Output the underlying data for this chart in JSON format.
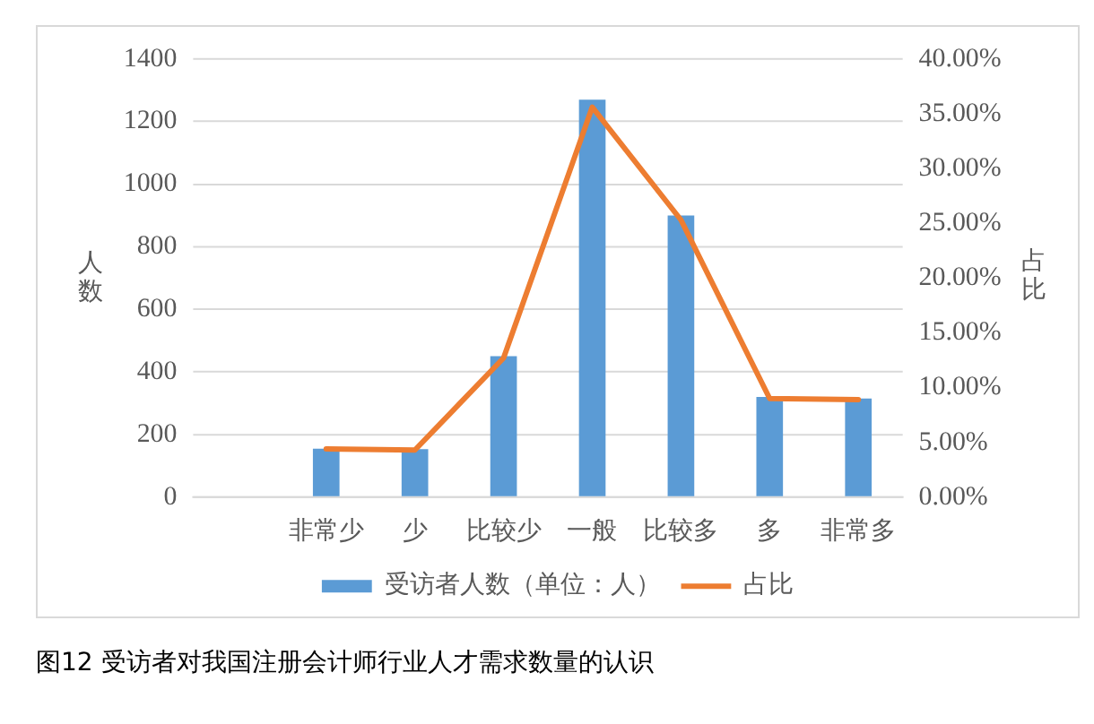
{
  "chart_data": {
    "type": "bar",
    "categories": [
      null,
      "非常少",
      "少",
      "比较少",
      "一般",
      "比较多",
      "多",
      "非常多"
    ],
    "series": [
      {
        "name": "受访者人数（单位：人）",
        "color": "#5b9bd5",
        "values": [
          null,
          155,
          153,
          450,
          1270,
          900,
          320,
          315
        ]
      },
      {
        "name": "占比",
        "type": "line",
        "axis": "y2",
        "color": "#ed7d31",
        "values": [
          null,
          4.4,
          4.3,
          12.7,
          35.6,
          25.3,
          9.0,
          8.9
        ]
      }
    ],
    "ylabel": "人数",
    "y2label": "占比",
    "ylim": [
      0,
      1400
    ],
    "yticks": [
      0,
      200,
      400,
      600,
      800,
      1000,
      1200,
      1400
    ],
    "y2lim": [
      0,
      40
    ],
    "y2ticks": [
      {
        "value": 0,
        "label": "0.00%"
      },
      {
        "value": 5,
        "label": "5.00%"
      },
      {
        "value": 10,
        "label": "10.00%"
      },
      {
        "value": 15,
        "label": "15.00%"
      },
      {
        "value": 20,
        "label": "20.00%"
      },
      {
        "value": 25,
        "label": "25.00%"
      },
      {
        "value": 30,
        "label": "30.00%"
      },
      {
        "value": 35,
        "label": "35.00%"
      },
      {
        "value": 40,
        "label": "40.00%"
      }
    ],
    "grid": "y",
    "legend": "bottom",
    "marker": "none",
    "annotations": [
      "图12 受访者对我国注册会计师行业人才需求数量的认识"
    ]
  }
}
